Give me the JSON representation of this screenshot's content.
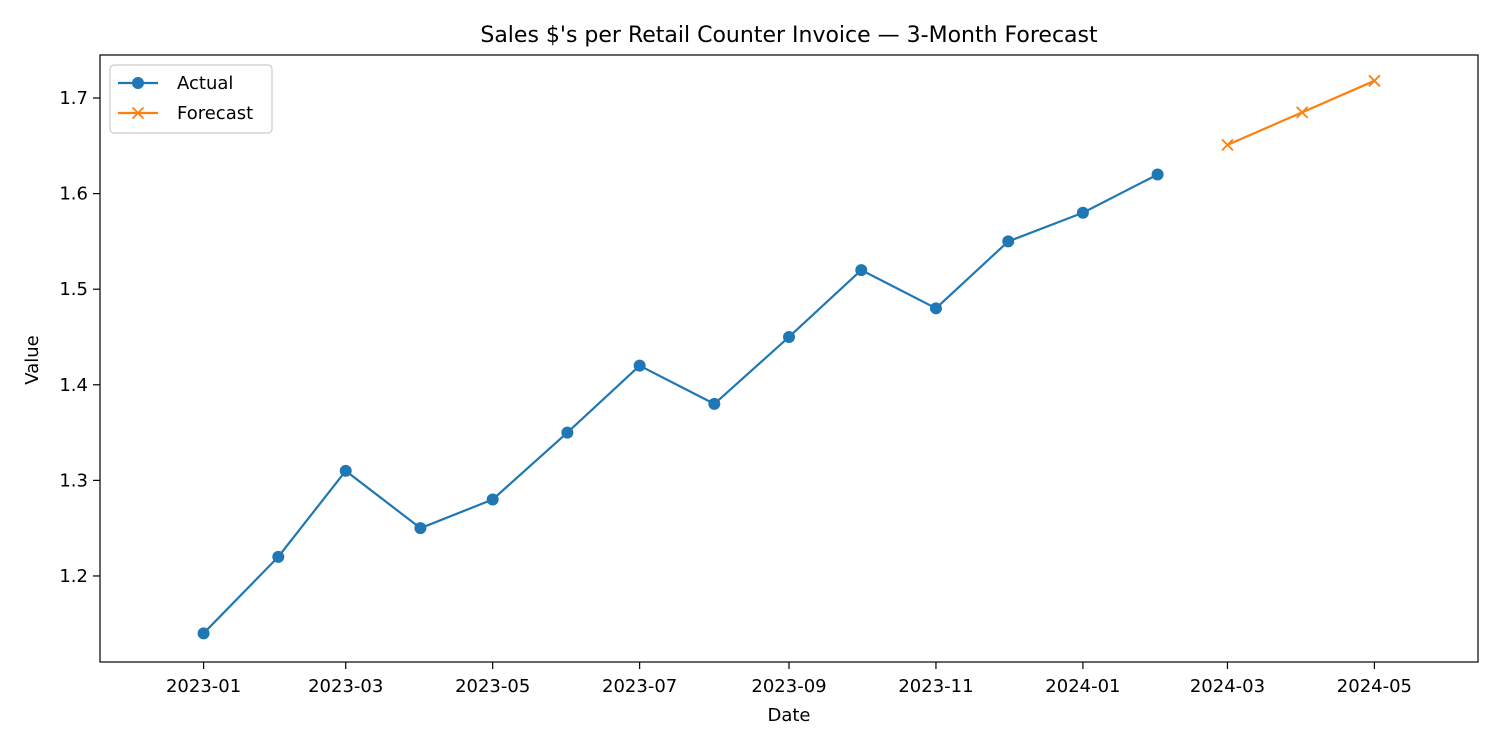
{
  "chart_data": {
    "type": "line",
    "title": "Sales $'s per Retail Counter Invoice — 3-Month Forecast",
    "xlabel": "Date",
    "ylabel": "Value",
    "x_tick_labels": [
      "2023-01",
      "2023-03",
      "2023-05",
      "2023-07",
      "2023-09",
      "2023-11",
      "2024-01",
      "2024-03",
      "2024-05"
    ],
    "y_tick_labels": [
      "1.2",
      "1.3",
      "1.4",
      "1.5",
      "1.6",
      "1.7"
    ],
    "ylim": [
      1.11,
      1.745
    ],
    "xlim": [
      "2022-11-19",
      "2024-06-13"
    ],
    "grid": false,
    "legend_position": "top-left",
    "series": [
      {
        "name": "Actual",
        "color": "#1f77b4",
        "marker": "circle",
        "x": [
          "2023-01",
          "2023-02",
          "2023-03",
          "2023-04",
          "2023-05",
          "2023-06",
          "2023-07",
          "2023-08",
          "2023-09",
          "2023-10",
          "2023-11",
          "2023-12",
          "2024-01",
          "2024-02"
        ],
        "values": [
          1.14,
          1.22,
          1.31,
          1.25,
          1.28,
          1.35,
          1.42,
          1.38,
          1.45,
          1.52,
          1.48,
          1.55,
          1.58,
          1.62
        ]
      },
      {
        "name": "Forecast",
        "color": "#ff7f0e",
        "marker": "x",
        "x": [
          "2024-03",
          "2024-04",
          "2024-05"
        ],
        "values": [
          1.651,
          1.685,
          1.718
        ]
      }
    ]
  }
}
